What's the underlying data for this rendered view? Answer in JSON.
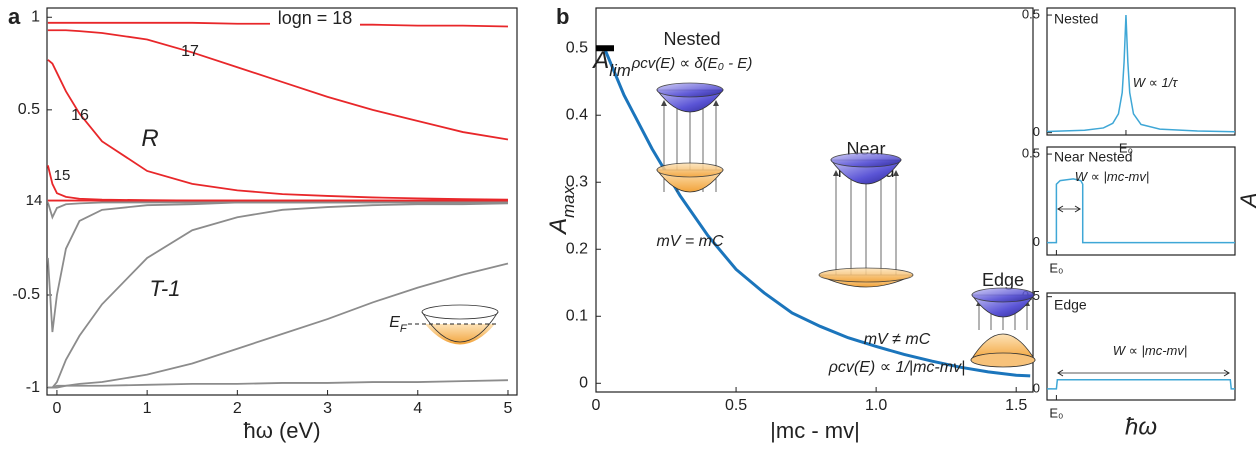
{
  "chart_data": [
    {
      "type": "line",
      "panel_label": "a",
      "xlabel": "ħω (eV)",
      "xlim": [
        -0.11,
        5.1
      ],
      "ylim": [
        -1.04,
        1.05
      ],
      "xticks": [
        0,
        1,
        2,
        3,
        4,
        5
      ],
      "yticks": [
        -1,
        -0.5,
        0.5,
        1
      ],
      "x": [
        -0.1,
        -0.05,
        0,
        0.1,
        0.25,
        0.5,
        1,
        1.5,
        2,
        2.5,
        3,
        3.5,
        4,
        4.5,
        5
      ],
      "series": [
        {
          "name": "logn = 18",
          "color": "#e8272a",
          "values": [
            0.97,
            0.97,
            0.97,
            0.97,
            0.97,
            0.97,
            0.97,
            0.97,
            0.965,
            0.965,
            0.96,
            0.96,
            0.955,
            0.955,
            0.95
          ]
        },
        {
          "name": "17",
          "color": "#e8272a",
          "values": [
            0.93,
            0.93,
            0.93,
            0.93,
            0.925,
            0.915,
            0.88,
            0.81,
            0.73,
            0.65,
            0.57,
            0.5,
            0.44,
            0.38,
            0.34
          ]
        },
        {
          "name": "16",
          "color": "#e8272a",
          "values": [
            0.77,
            0.75,
            0.7,
            0.6,
            0.48,
            0.33,
            0.17,
            0.1,
            0.065,
            0.045,
            0.035,
            0.027,
            0.022,
            0.018,
            0.015
          ]
        },
        {
          "name": "15",
          "color": "#e8272a",
          "values": [
            0.2,
            0.1,
            0.05,
            0.03,
            0.02,
            0.015,
            0.012,
            0.01,
            0.01,
            0.01,
            0.01,
            0.01,
            0.01,
            0.01,
            0.01
          ]
        },
        {
          "name": "14",
          "color": "#e8272a",
          "values": [
            0.01,
            0.01,
            0.01,
            0.01,
            0.01,
            0.01,
            0.01,
            0.01,
            0.01,
            0.01,
            0.01,
            0.01,
            0.01,
            0.01,
            0.01
          ]
        },
        {
          "color": "#8c8c8c",
          "values": [
            0,
            -0.08,
            -0.03,
            -0.01,
            -0.005,
            0,
            0,
            0,
            0,
            0,
            0,
            0,
            0,
            0,
            0
          ]
        },
        {
          "color": "#8c8c8c",
          "values": [
            -0.3,
            -0.7,
            -0.5,
            -0.25,
            -0.1,
            -0.04,
            -0.015,
            -0.01,
            0,
            0,
            0,
            0,
            0,
            0,
            0
          ]
        },
        {
          "color": "#8c8c8c",
          "values": [
            -1,
            -1,
            -0.97,
            -0.85,
            -0.72,
            -0.55,
            -0.3,
            -0.15,
            -0.08,
            -0.04,
            -0.025,
            -0.015,
            -0.01,
            -0.01,
            -0.005
          ]
        },
        {
          "color": "#8c8c8c",
          "values": [
            -1,
            -1,
            -1,
            -0.99,
            -0.98,
            -0.97,
            -0.93,
            -0.87,
            -0.79,
            -0.71,
            -0.63,
            -0.54,
            -0.46,
            -0.39,
            -0.33
          ]
        },
        {
          "color": "#8c8c8c",
          "values": [
            -1,
            -1,
            -0.99,
            -0.99,
            -0.99,
            -0.99,
            -0.985,
            -0.98,
            -0.98,
            -0.975,
            -0.975,
            -0.97,
            -0.97,
            -0.965,
            -0.96
          ]
        }
      ],
      "annotations": [
        {
          "text": "R"
        },
        {
          "text": "T-1"
        },
        {
          "text": "E",
          "sub": "F"
        }
      ]
    },
    {
      "type": "line",
      "panel_label": "b",
      "xlabel": "|mc - mv|",
      "ylabel": {
        "text": "A",
        "sub": "max"
      },
      "xlim": [
        0,
        1.56
      ],
      "ylim": [
        -0.013,
        0.56
      ],
      "xticks": [
        0,
        0.5,
        {
          "value": 1,
          "label": "1.0"
        },
        1.5
      ],
      "yticks": [
        0,
        0.1,
        0.2,
        0.3,
        0.4,
        0.5
      ],
      "color": "#1b75bc",
      "limit_marker": 0.5,
      "x": [
        0.03,
        0.1,
        0.2,
        0.3,
        0.4,
        0.5,
        0.6,
        0.7,
        0.8,
        0.9,
        1.0,
        1.1,
        1.2,
        1.3,
        1.4,
        1.5,
        1.55
      ],
      "values": [
        0.5,
        0.43,
        0.35,
        0.28,
        0.22,
        0.17,
        0.135,
        0.105,
        0.085,
        0.068,
        0.055,
        0.043,
        0.033,
        0.024,
        0.017,
        0.012,
        0.011
      ],
      "annotations": [
        {
          "text": "A",
          "sub": "lim"
        },
        {
          "text": "Nested"
        },
        {
          "text": "ρcv(E) ∝ δ(E₀ - E)"
        },
        {
          "text": "mV = mC"
        },
        {
          "text": "Near"
        },
        {
          "text": "Nested"
        },
        {
          "text": "Edge"
        },
        {
          "text": "mV ≠ mC"
        },
        {
          "text": "ρcv(E) ∝ 1/|mc-mv|"
        }
      ]
    },
    {
      "type": "line",
      "title": "Nested",
      "xlim": [
        0,
        1
      ],
      "ylim": [
        -0.01,
        0.53
      ],
      "xticks": [
        {
          "value": 0.42,
          "label": "E₀"
        }
      ],
      "yticks": [
        0,
        0.5
      ],
      "color": "#3fa7d6",
      "x": [
        0,
        0.2,
        0.3,
        0.35,
        0.38,
        0.4,
        0.41,
        0.42,
        0.43,
        0.44,
        0.46,
        0.5,
        0.6,
        0.8,
        1
      ],
      "values": [
        0.005,
        0.01,
        0.02,
        0.04,
        0.08,
        0.17,
        0.3,
        0.5,
        0.3,
        0.17,
        0.08,
        0.035,
        0.015,
        0.007,
        0.004
      ],
      "annotations": [
        {
          "text": "W ∝ 1/τ"
        }
      ]
    },
    {
      "type": "line",
      "title": "Near Nested",
      "ylabel": {
        "text": "A"
      },
      "xlim": [
        0,
        1
      ],
      "ylim": [
        -0.07,
        0.54
      ],
      "xticks": [
        {
          "value": 0.05,
          "label": "E₀"
        }
      ],
      "yticks": [
        0,
        0.5
      ],
      "color": "#3fa7d6",
      "x": [
        0,
        0.05,
        0.05,
        0.07,
        0.14,
        0.18,
        0.19,
        0.19,
        1
      ],
      "values": [
        0,
        0,
        0.33,
        0.35,
        0.36,
        0.35,
        0.33,
        0,
        0
      ],
      "annotations": [
        {
          "text": "W ∝ |mc-mv|"
        }
      ]
    },
    {
      "type": "line",
      "title": "Edge",
      "xlabel": "ħω",
      "xlim": [
        0,
        1
      ],
      "ylim": [
        -0.06,
        0.52
      ],
      "xticks": [
        {
          "value": 0.05,
          "label": "E₀"
        }
      ],
      "yticks": [
        0,
        0.5
      ],
      "color": "#3fa7d6",
      "x": [
        0,
        0.05,
        0.055,
        0.5,
        0.975,
        0.98,
        1
      ],
      "values": [
        0,
        0,
        0.05,
        0.05,
        0.05,
        0,
        0
      ],
      "annotations": [
        {
          "text": "W ∝ |mc-mv|"
        }
      ]
    }
  ]
}
